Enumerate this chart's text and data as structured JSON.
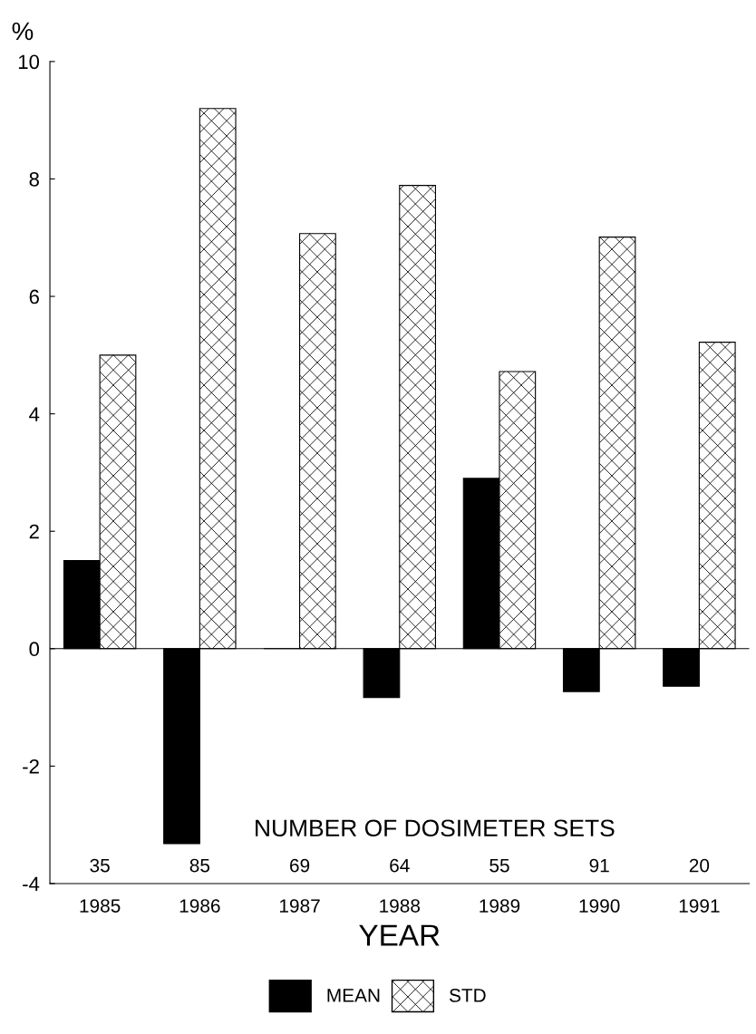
{
  "chart_data": {
    "type": "bar",
    "xlabel": "YEAR",
    "ylabel": "%",
    "categories": [
      "1985",
      "1986",
      "1987",
      "1988",
      "1989",
      "1990",
      "1991"
    ],
    "series": [
      {
        "name": "MEAN",
        "color": "#000000",
        "values": [
          1.5,
          -3.32,
          0,
          -0.83,
          2.9,
          -0.73,
          -0.64
        ]
      },
      {
        "name": "STD",
        "color": "#000000",
        "values": [
          5.0,
          9.2,
          7.07,
          7.89,
          4.72,
          7.01,
          5.22
        ]
      }
    ],
    "ylim": [
      -4,
      10
    ],
    "yticks": [
      -4,
      -2,
      0,
      2,
      4,
      6,
      8,
      10
    ],
    "ref_lines": [
      {
        "axis": "y",
        "value": 0
      }
    ],
    "annotations": [
      "NUMBER OF DOSIMETER SETS",
      "35",
      "85",
      "69",
      "64",
      "55",
      "91",
      "20"
    ],
    "grid": false,
    "legend": "bottom"
  }
}
